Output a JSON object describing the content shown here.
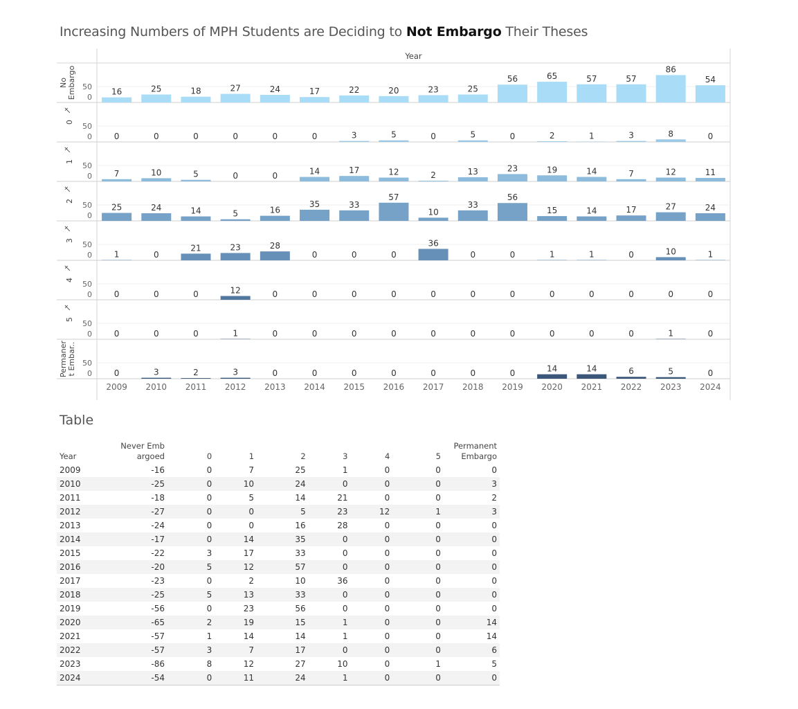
{
  "title": {
    "before": "Increasing Numbers of MPH Students are Deciding to ",
    "bold": "Not Embargo",
    "after": " Their Theses"
  },
  "chart_data": {
    "type": "bar",
    "column_header": "Year",
    "categories": [
      "2009",
      "2010",
      "2011",
      "2012",
      "2013",
      "2014",
      "2015",
      "2016",
      "2017",
      "2018",
      "2019",
      "2020",
      "2021",
      "2022",
      "2023",
      "2024"
    ],
    "row_axis_ticks": [
      "0",
      "50"
    ],
    "series": [
      {
        "name": "No Embargo",
        "color": "#a9dcf6",
        "values": [
          16,
          25,
          18,
          27,
          24,
          17,
          22,
          20,
          23,
          25,
          56,
          65,
          57,
          57,
          86,
          54
        ]
      },
      {
        "name": "0",
        "color": "#9cc8e6",
        "values": [
          0,
          0,
          0,
          0,
          0,
          0,
          3,
          5,
          0,
          5,
          0,
          2,
          1,
          3,
          8,
          0
        ]
      },
      {
        "name": "1",
        "color": "#8dbbdc",
        "values": [
          7,
          10,
          5,
          0,
          0,
          14,
          17,
          12,
          2,
          13,
          23,
          19,
          14,
          7,
          12,
          11
        ]
      },
      {
        "name": "2",
        "color": "#76a2c8",
        "values": [
          25,
          24,
          14,
          5,
          16,
          35,
          33,
          57,
          10,
          33,
          56,
          15,
          14,
          17,
          27,
          24
        ]
      },
      {
        "name": "3",
        "color": "#6690b8",
        "values": [
          1,
          0,
          21,
          23,
          28,
          0,
          0,
          0,
          36,
          0,
          0,
          1,
          1,
          0,
          10,
          1
        ]
      },
      {
        "name": "4",
        "color": "#53789f",
        "values": [
          0,
          0,
          0,
          12,
          0,
          0,
          0,
          0,
          0,
          0,
          0,
          0,
          0,
          0,
          0,
          0
        ]
      },
      {
        "name": "5",
        "color": "#45688f",
        "values": [
          0,
          0,
          0,
          1,
          0,
          0,
          0,
          0,
          0,
          0,
          0,
          0,
          0,
          0,
          1,
          0
        ]
      },
      {
        "name": "Permanent Embargo",
        "color": "#3a5779",
        "values": [
          0,
          3,
          2,
          3,
          0,
          0,
          0,
          0,
          0,
          0,
          0,
          14,
          14,
          6,
          5,
          0
        ]
      }
    ],
    "row_labels": [
      [
        "No",
        "Embargo"
      ],
      [
        "0"
      ],
      [
        "1"
      ],
      [
        "2"
      ],
      [
        "3"
      ],
      [
        "4"
      ],
      [
        "5"
      ],
      [
        "Permaner",
        "t Embar.."
      ]
    ],
    "pinned_rows": [
      false,
      true,
      true,
      true,
      true,
      true,
      true,
      false
    ],
    "ylim": [
      0,
      90
    ]
  },
  "table": {
    "title": "Table",
    "headers": [
      "Year",
      "Never Emb\nargoed",
      "0",
      "1",
      "2",
      "3",
      "4",
      "5",
      "Permanent\nEmbargo"
    ],
    "rows": [
      [
        "2009",
        "-16",
        "0",
        "7",
        "25",
        "1",
        "0",
        "0",
        "0"
      ],
      [
        "2010",
        "-25",
        "0",
        "10",
        "24",
        "0",
        "0",
        "0",
        "3"
      ],
      [
        "2011",
        "-18",
        "0",
        "5",
        "14",
        "21",
        "0",
        "0",
        "2"
      ],
      [
        "2012",
        "-27",
        "0",
        "0",
        "5",
        "23",
        "12",
        "1",
        "3"
      ],
      [
        "2013",
        "-24",
        "0",
        "0",
        "16",
        "28",
        "0",
        "0",
        "0"
      ],
      [
        "2014",
        "-17",
        "0",
        "14",
        "35",
        "0",
        "0",
        "0",
        "0"
      ],
      [
        "2015",
        "-22",
        "3",
        "17",
        "33",
        "0",
        "0",
        "0",
        "0"
      ],
      [
        "2016",
        "-20",
        "5",
        "12",
        "57",
        "0",
        "0",
        "0",
        "0"
      ],
      [
        "2017",
        "-23",
        "0",
        "2",
        "10",
        "36",
        "0",
        "0",
        "0"
      ],
      [
        "2018",
        "-25",
        "5",
        "13",
        "33",
        "0",
        "0",
        "0",
        "0"
      ],
      [
        "2019",
        "-56",
        "0",
        "23",
        "56",
        "0",
        "0",
        "0",
        "0"
      ],
      [
        "2020",
        "-65",
        "2",
        "19",
        "15",
        "1",
        "0",
        "0",
        "14"
      ],
      [
        "2021",
        "-57",
        "1",
        "14",
        "14",
        "1",
        "0",
        "0",
        "14"
      ],
      [
        "2022",
        "-57",
        "3",
        "7",
        "17",
        "0",
        "0",
        "0",
        "6"
      ],
      [
        "2023",
        "-86",
        "8",
        "12",
        "27",
        "10",
        "0",
        "1",
        "5"
      ],
      [
        "2024",
        "-54",
        "0",
        "11",
        "24",
        "1",
        "0",
        "0",
        "0"
      ]
    ]
  }
}
